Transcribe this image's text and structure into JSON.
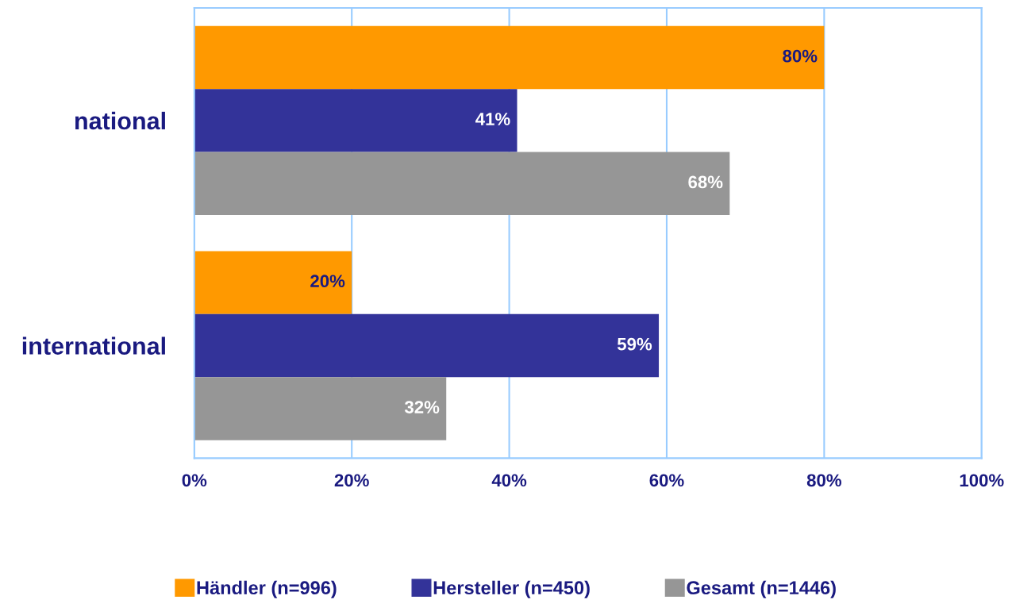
{
  "chart_data": {
    "type": "bar",
    "orientation": "horizontal",
    "categories": [
      "national",
      "international"
    ],
    "series": [
      {
        "name": "Händler (n=996)",
        "color": "#ff9900",
        "values": [
          80,
          20
        ],
        "value_labels": [
          "80%",
          "20%"
        ]
      },
      {
        "name": "Hersteller (n=450)",
        "color": "#333399",
        "values": [
          41,
          59
        ],
        "value_labels": [
          "41%",
          "59%"
        ]
      },
      {
        "name": "Gesamt (n=1446)",
        "color": "#969696",
        "values": [
          68,
          32
        ],
        "value_labels": [
          "68%",
          "32%"
        ]
      }
    ],
    "xlim": [
      0,
      100
    ],
    "xticks": [
      {
        "value": 0,
        "label": "0%"
      },
      {
        "value": 20,
        "label": "20%"
      },
      {
        "value": 40,
        "label": "40%"
      },
      {
        "value": 60,
        "label": "60%"
      },
      {
        "value": 80,
        "label": "80%"
      },
      {
        "value": 100,
        "label": "100%"
      }
    ],
    "grid": "x",
    "legend": "bottom"
  }
}
